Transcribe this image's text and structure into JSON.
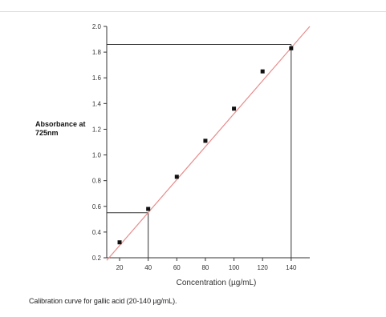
{
  "chart_data": {
    "type": "scatter",
    "title": "",
    "ylabel": "Absorbance at\n725nm",
    "xlabel": "Concentration (µg/mL)",
    "caption": "Calibration curve for gallic acid (20-140 µg/mL).",
    "xlim": [
      11,
      153
    ],
    "ylim": [
      0.2,
      2.0
    ],
    "x_ticks": [
      20,
      40,
      60,
      80,
      100,
      120,
      140
    ],
    "y_ticks": [
      0.2,
      0.4,
      0.6,
      0.8,
      1.0,
      1.2,
      1.4,
      1.6,
      1.8,
      2.0
    ],
    "series": [
      {
        "x": [
          20,
          40,
          60,
          80,
          100,
          120,
          140
        ],
        "y": [
          0.32,
          0.58,
          0.83,
          1.11,
          1.36,
          1.65,
          1.83
        ]
      }
    ],
    "fit_line": {
      "x": [
        11,
        153
      ],
      "y": [
        0.18,
        2.0
      ]
    },
    "reference_lines": [
      {
        "x": 40,
        "y": 0.55
      },
      {
        "x": 140,
        "y": 1.86
      }
    ],
    "colors": {
      "fit_line": "#e88b8b",
      "points": "#111111",
      "axes": "#333333",
      "reference_lines": "#333333"
    },
    "grid": false
  }
}
